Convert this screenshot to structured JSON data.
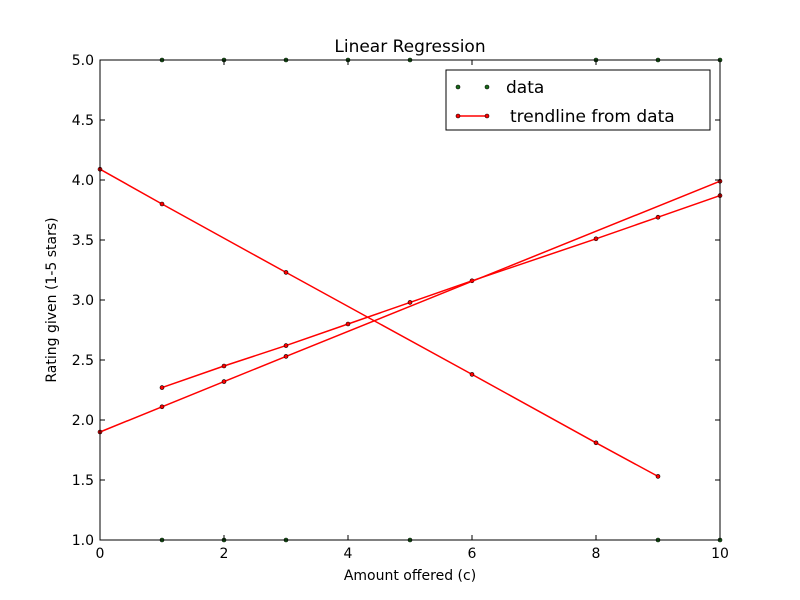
{
  "chart_data": {
    "type": "line",
    "title": "Linear Regression",
    "xlabel": "Amount offered (c)",
    "ylabel": "Rating given (1-5 stars)",
    "xlim": [
      0,
      10
    ],
    "ylim": [
      1.0,
      5.0
    ],
    "xticks": [
      "0",
      "2",
      "4",
      "6",
      "8",
      "10"
    ],
    "yticks": [
      "1.0",
      "1.5",
      "2.0",
      "2.5",
      "3.0",
      "3.5",
      "4.0",
      "4.5",
      "5.0"
    ],
    "grid": false,
    "legend": {
      "placement": "top-right",
      "entries": [
        "data",
        "trendline from data"
      ]
    },
    "colors": {
      "data": "#1a6b1a",
      "trendline": "#ff0000",
      "marker_edge": "#000000"
    },
    "data_points": {
      "name": "data",
      "x": [
        1,
        2,
        3,
        4,
        5,
        8,
        9,
        10,
        1,
        2,
        3,
        5,
        9,
        10
      ],
      "y": [
        5.0,
        5.0,
        5.0,
        5.0,
        5.0,
        5.0,
        5.0,
        5.0,
        1.0,
        1.0,
        1.0,
        1.0,
        1.0,
        1.0
      ]
    },
    "series": [
      {
        "name": "trendline from data",
        "x": [
          0,
          1,
          3,
          6,
          8,
          9
        ],
        "y": [
          4.09,
          3.8,
          3.23,
          2.38,
          1.81,
          1.53
        ]
      },
      {
        "name": "trendline from data",
        "x": [
          1,
          2,
          3,
          4,
          5,
          6,
          8,
          9,
          10
        ],
        "y": [
          2.27,
          2.45,
          2.62,
          2.8,
          2.98,
          3.16,
          3.51,
          3.69,
          3.87
        ]
      },
      {
        "name": "trendline from data",
        "x": [
          0,
          1,
          2,
          3,
          10
        ],
        "y": [
          1.9,
          2.11,
          2.32,
          2.53,
          3.99
        ]
      }
    ]
  }
}
